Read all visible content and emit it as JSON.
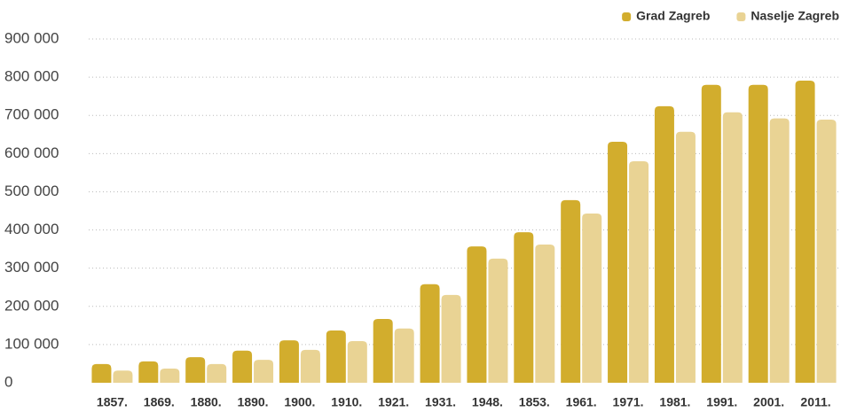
{
  "chart_data": {
    "type": "bar",
    "categories": [
      "1857.",
      "1869.",
      "1880.",
      "1890.",
      "1900.",
      "1910.",
      "1921.",
      "1931.",
      "1948.",
      "1853.",
      "1961.",
      "1971.",
      "1981.",
      "1991.",
      "2001.",
      "2011."
    ],
    "series": [
      {
        "name": "Grad Zagreb",
        "color": "#d2ad2d",
        "values": [
          49000,
          56000,
          67000,
          84000,
          111000,
          137000,
          167000,
          258000,
          357000,
          394000,
          478000,
          631000,
          724000,
          780000,
          780000,
          791000
        ]
      },
      {
        "name": "Naselje Zagreb",
        "color": "#e9d394",
        "values": [
          32000,
          37000,
          49000,
          60000,
          86000,
          109000,
          142000,
          230000,
          325000,
          362000,
          443000,
          580000,
          657000,
          708000,
          692000,
          689000
        ]
      }
    ],
    "ylim": [
      0,
      900000
    ],
    "yticks": [
      0,
      {
        "value": 100000,
        "label": "100 000"
      },
      {
        "value": 200000,
        "label": "200 000"
      },
      {
        "value": 300000,
        "label": "300 000"
      },
      {
        "value": 400000,
        "label": "400 000"
      },
      {
        "value": 500000,
        "label": "500 000"
      },
      {
        "value": 600000,
        "label": "600 000"
      },
      {
        "value": 700000,
        "label": "700 000"
      },
      {
        "value": 800000,
        "label": "800 000"
      },
      {
        "value": 900000,
        "label": "900 000"
      }
    ],
    "grid": true,
    "legend": "top-right"
  }
}
